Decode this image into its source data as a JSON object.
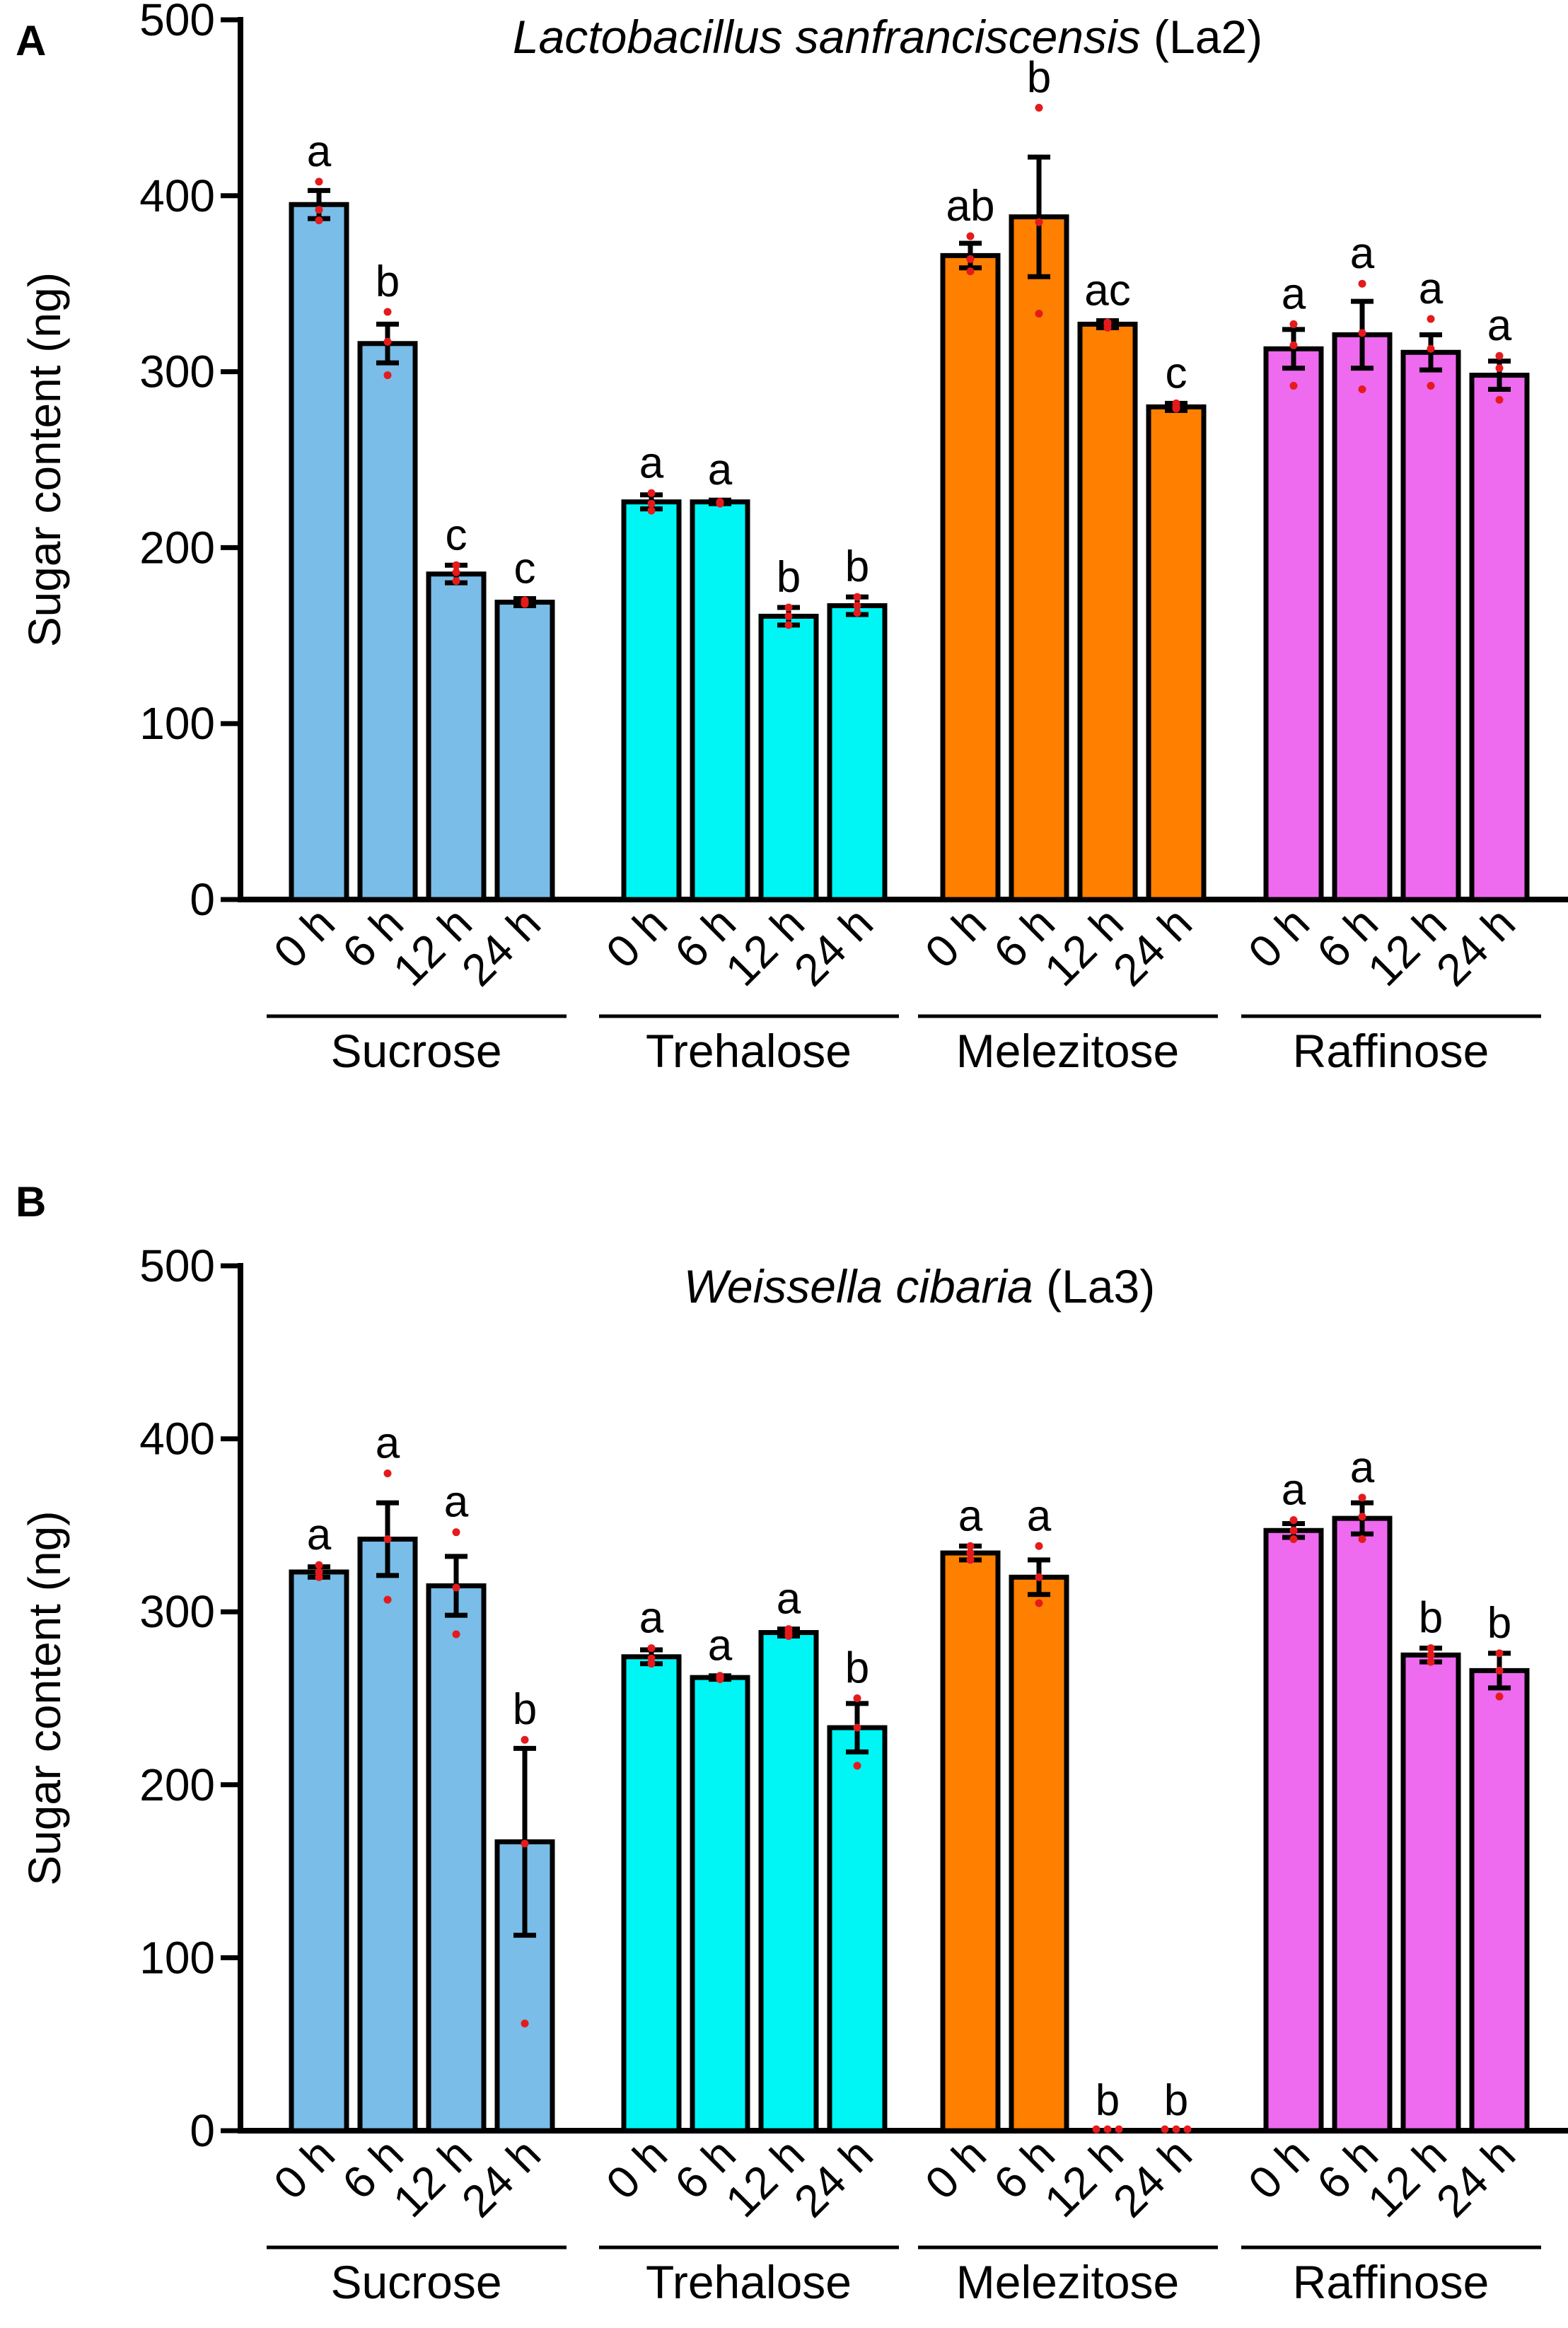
{
  "colors": {
    "Sucrose": "#79bde8",
    "Trehalose": "#00f5f5",
    "Melezitose": "#ff7f00",
    "Raffinose": "#ee6aee",
    "point": "#e41a1c",
    "axis": "#000000"
  },
  "chart_data": [
    {
      "type": "bar",
      "panel_label": "A",
      "title_italic": "Lactobacillus sanfranciscensis",
      "title_suffix": " (La2)",
      "ylabel": "Sugar content (ng)",
      "ylim": [
        0,
        500
      ],
      "yticks": [
        0,
        100,
        200,
        300,
        400,
        500
      ],
      "yticklabels": [
        "0",
        "100",
        "200",
        "300",
        "400",
        "500"
      ],
      "groups": [
        {
          "name": "Sucrose",
          "categories": [
            "0 h",
            "6 h",
            "12 h",
            "24 h"
          ],
          "values": [
            395,
            316,
            185,
            169
          ],
          "errors": [
            8,
            11,
            5,
            2
          ],
          "letters": [
            "a",
            "b",
            "c",
            "c"
          ],
          "points": [
            [
              408,
              392,
              386
            ],
            [
              334,
              317,
              298
            ],
            [
              190,
              186,
              181
            ],
            [
              170,
              169,
              168
            ]
          ]
        },
        {
          "name": "Trehalose",
          "categories": [
            "0 h",
            "6 h",
            "12 h",
            "24 h"
          ],
          "values": [
            226,
            226,
            161,
            167
          ],
          "errors": [
            4,
            1,
            5,
            5
          ],
          "letters": [
            "a",
            "a",
            "b",
            "b"
          ],
          "points": [
            [
              231,
              225,
              221
            ],
            [
              226,
              226,
              225
            ],
            [
              166,
              161,
              156
            ],
            [
              172,
              167,
              163
            ]
          ]
        },
        {
          "name": "Melezitose",
          "categories": [
            "0 h",
            "6 h",
            "12 h",
            "24 h"
          ],
          "values": [
            366,
            388,
            327,
            280
          ],
          "errors": [
            7,
            34,
            2,
            2
          ],
          "letters": [
            "ab",
            "b",
            "ac",
            "c"
          ],
          "points": [
            [
              377,
              364,
              357
            ],
            [
              450,
              385,
              333
            ],
            [
              328,
              327,
              325
            ],
            [
              282,
              280,
              279
            ]
          ]
        },
        {
          "name": "Raffinose",
          "categories": [
            "0 h",
            "6 h",
            "12 h",
            "24 h"
          ],
          "values": [
            313,
            321,
            311,
            298
          ],
          "errors": [
            11,
            19,
            10,
            8
          ],
          "letters": [
            "a",
            "a",
            "a",
            "a"
          ],
          "points": [
            [
              327,
              315,
              292
            ],
            [
              350,
              322,
              290
            ],
            [
              330,
              313,
              292
            ],
            [
              309,
              302,
              284
            ]
          ]
        }
      ]
    },
    {
      "type": "bar",
      "panel_label": "B",
      "title_italic": "Weissella cibaria",
      "title_suffix": " (La3)",
      "ylabel": "Sugar content (ng)",
      "ylim": [
        0,
        500
      ],
      "yticks": [
        0,
        100,
        200,
        300,
        400,
        500
      ],
      "yticklabels": [
        "0",
        "100",
        "200",
        "300",
        "400",
        "500"
      ],
      "groups": [
        {
          "name": "Sucrose",
          "categories": [
            "0 h",
            "6 h",
            "12 h",
            "24 h"
          ],
          "values": [
            323,
            342,
            315,
            167
          ],
          "errors": [
            3,
            21,
            17,
            54
          ],
          "letters": [
            "a",
            "a",
            "a",
            "b"
          ],
          "points": [
            [
              327,
              323,
              320
            ],
            [
              380,
              342,
              307
            ],
            [
              346,
              314,
              287
            ],
            [
              226,
              166,
              62
            ]
          ]
        },
        {
          "name": "Trehalose",
          "categories": [
            "0 h",
            "6 h",
            "12 h",
            "24 h"
          ],
          "values": [
            274,
            262,
            288,
            233
          ],
          "errors": [
            4,
            1,
            2,
            14
          ],
          "letters": [
            "a",
            "a",
            "a",
            "b"
          ],
          "points": [
            [
              279,
              273,
              270
            ],
            [
              263,
              262,
              261
            ],
            [
              290,
              288,
              286
            ],
            [
              250,
              233,
              211
            ]
          ]
        },
        {
          "name": "Melezitose",
          "categories": [
            "0 h",
            "6 h",
            "12 h",
            "24 h"
          ],
          "values": [
            334,
            320,
            0,
            0
          ],
          "errors": [
            4,
            10,
            0,
            0
          ],
          "letters": [
            "a",
            "a",
            "b",
            "b"
          ],
          "points": [
            [
              338,
              334,
              330
            ],
            [
              338,
              320,
              305
            ],
            [
              0,
              0,
              0
            ],
            [
              0,
              0,
              0
            ]
          ]
        },
        {
          "name": "Raffinose",
          "categories": [
            "0 h",
            "6 h",
            "12 h",
            "24 h"
          ],
          "values": [
            347,
            354,
            275,
            266
          ],
          "errors": [
            4,
            9,
            4,
            10
          ],
          "letters": [
            "a",
            "a",
            "b",
            "b"
          ],
          "points": [
            [
              353,
              347,
              342
            ],
            [
              366,
              355,
              342
            ],
            [
              279,
              275,
              271
            ],
            [
              276,
              266,
              251
            ]
          ]
        }
      ]
    }
  ]
}
